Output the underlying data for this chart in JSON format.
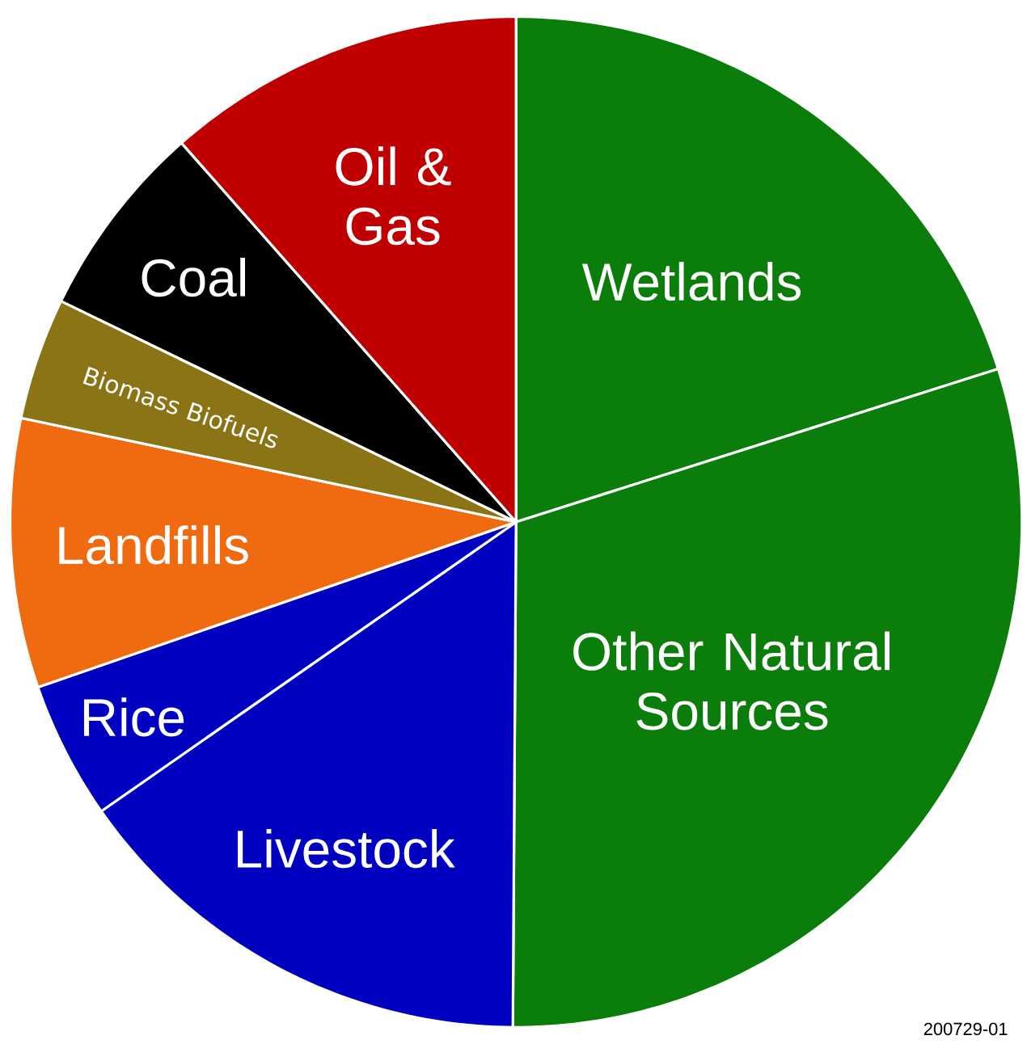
{
  "chart_data": {
    "type": "pie",
    "categories": [
      "Wetlands",
      "Other Natural Sources",
      "Livestock",
      "Rice",
      "Landfills",
      "Biomass Biofuels",
      "Coal",
      "Oil & Gas"
    ],
    "values": [
      20.1,
      30.0,
      15.2,
      4.4,
      8.6,
      3.9,
      6.3,
      11.5
    ],
    "colors": [
      "#0a7d0a",
      "#0a7d0a",
      "#0000c0",
      "#0000c0",
      "#f06a10",
      "#8b7415",
      "#000000",
      "#c00000"
    ],
    "annotations": [
      "200729-01"
    ]
  }
}
